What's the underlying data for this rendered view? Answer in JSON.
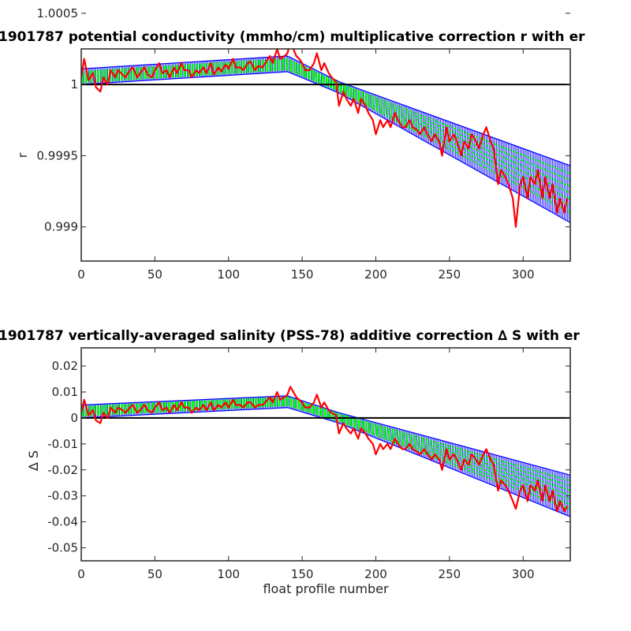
{
  "chart_data": [
    {
      "type": "line",
      "title": "1901787 potential conductivity (mmho/cm) multiplicative correction r with er",
      "xlabel": "",
      "ylabel": "r",
      "xlim": [
        0,
        332
      ],
      "ylim": [
        0.99876,
        1.00025
      ],
      "xticks": [
        0,
        50,
        100,
        150,
        200,
        250,
        300
      ],
      "xtick_labels": [
        "0",
        "50",
        "100",
        "150",
        "200",
        "250",
        "300"
      ],
      "yticks": [
        0.999,
        0.9995,
        1,
        1.0005
      ],
      "ytick_labels": [
        "0.999",
        "0.9995",
        "1",
        "1.0005"
      ],
      "reference_line": 1,
      "colors": {
        "reference": "#000000",
        "error_band": "#0000ff",
        "fit": "#00ff00",
        "measured": "#ff0000"
      },
      "series": [
        {
          "role": "error_upper",
          "x": [
            0,
            140,
            175,
            332
          ],
          "y": [
            1.00011,
            1.0002,
            1.00002,
            0.99943
          ]
        },
        {
          "role": "error_lower",
          "x": [
            0,
            140,
            175,
            332
          ],
          "y": [
            1.0,
            1.00009,
            0.99994,
            0.99903
          ]
        },
        {
          "role": "fit",
          "x": [
            0,
            140,
            175,
            332
          ],
          "y": [
            1.00005,
            1.00014,
            0.99998,
            0.99923
          ]
        },
        {
          "role": "measured",
          "x": [
            0,
            2,
            5,
            8,
            10,
            13,
            15,
            18,
            20,
            23,
            25,
            28,
            30,
            33,
            35,
            38,
            40,
            43,
            45,
            48,
            50,
            53,
            55,
            58,
            60,
            63,
            65,
            68,
            70,
            73,
            75,
            78,
            80,
            83,
            85,
            88,
            90,
            93,
            95,
            98,
            100,
            103,
            105,
            108,
            110,
            113,
            115,
            118,
            120,
            123,
            125,
            128,
            130,
            133,
            135,
            138,
            140,
            142,
            144,
            146,
            148,
            150,
            152,
            155,
            158,
            160,
            163,
            165,
            168,
            170,
            173,
            175,
            178,
            180,
            183,
            185,
            188,
            190,
            193,
            195,
            198,
            200,
            203,
            205,
            208,
            210,
            213,
            215,
            218,
            220,
            223,
            225,
            228,
            230,
            233,
            235,
            238,
            240,
            243,
            245,
            248,
            250,
            253,
            255,
            258,
            260,
            263,
            265,
            268,
            270,
            273,
            275,
            278,
            280,
            283,
            285,
            288,
            290,
            293,
            295,
            298,
            300,
            303,
            305,
            308,
            310,
            313,
            315,
            318,
            320,
            323,
            325,
            328,
            330
          ],
          "y": [
            1.00005,
            1.00018,
            1.00003,
            1.00008,
            0.99998,
            0.99995,
            1.00005,
            1.0,
            1.0001,
            1.00005,
            1.0001,
            1.00007,
            1.00005,
            1.0001,
            1.00012,
            1.00005,
            1.00008,
            1.00012,
            1.00007,
            1.00005,
            1.0001,
            1.00015,
            1.00008,
            1.0001,
            1.00005,
            1.00012,
            1.00008,
            1.00015,
            1.0001,
            1.0001,
            1.00005,
            1.0001,
            1.00008,
            1.00012,
            1.00008,
            1.00015,
            1.00007,
            1.00012,
            1.00009,
            1.00014,
            1.00011,
            1.00018,
            1.00012,
            1.00012,
            1.0001,
            1.00015,
            1.00016,
            1.0001,
            1.00013,
            1.00012,
            1.00015,
            1.0002,
            1.00015,
            1.00025,
            1.00018,
            1.0002,
            1.00022,
            1.0003,
            1.00025,
            1.0002,
            1.00018,
            1.00015,
            1.0001,
            1.0001,
            1.00015,
            1.00022,
            1.0001,
            1.00015,
            1.00008,
            1.00005,
            1.00002,
            0.99985,
            0.99995,
            0.9999,
            0.99985,
            0.9999,
            0.9998,
            0.9999,
            0.99985,
            0.9998,
            0.99975,
            0.99965,
            0.99975,
            0.9997,
            0.99975,
            0.9997,
            0.9998,
            0.99975,
            0.9997,
            0.9997,
            0.99975,
            0.9997,
            0.99968,
            0.99965,
            0.9997,
            0.99965,
            0.9996,
            0.99965,
            0.9996,
            0.9995,
            0.9997,
            0.9996,
            0.99965,
            0.9996,
            0.9995,
            0.9996,
            0.99955,
            0.99965,
            0.9996,
            0.99955,
            0.99965,
            0.9997,
            0.9996,
            0.99955,
            0.9993,
            0.9994,
            0.99935,
            0.9993,
            0.9992,
            0.999,
            0.9993,
            0.99935,
            0.9992,
            0.99935,
            0.9993,
            0.9994,
            0.9992,
            0.99935,
            0.9992,
            0.9993,
            0.9991,
            0.9992,
            0.9991,
            0.9992
          ]
        }
      ]
    },
    {
      "type": "line",
      "title": "1901787 vertically-averaged salinity (PSS-78) additive correction ∆ S with er",
      "xlabel": "float profile number",
      "ylabel": "∆ S",
      "xlim": [
        0,
        332
      ],
      "ylim": [
        -0.055,
        0.027
      ],
      "xticks": [
        0,
        50,
        100,
        150,
        200,
        250,
        300
      ],
      "xtick_labels": [
        "0",
        "50",
        "100",
        "150",
        "200",
        "250",
        "300"
      ],
      "yticks": [
        0.02,
        0.01,
        0,
        -0.01,
        -0.02,
        -0.03,
        -0.04,
        -0.05
      ],
      "ytick_labels": [
        "0.02",
        "0.01",
        "0",
        "-0.01",
        "-0.02",
        "-0.03",
        "-0.04",
        "-0.05"
      ],
      "reference_line": 0,
      "colors": {
        "reference": "#000000",
        "error_band": "#0000ff",
        "fit": "#00ff00",
        "measured": "#ff0000"
      },
      "series": [
        {
          "role": "error_upper",
          "x": [
            0,
            140,
            175,
            332
          ],
          "y": [
            0.005,
            0.0085,
            0.002,
            -0.022
          ]
        },
        {
          "role": "error_lower",
          "x": [
            0,
            140,
            175,
            332
          ],
          "y": [
            0.0,
            0.004,
            -0.002,
            -0.038
          ]
        },
        {
          "role": "fit",
          "x": [
            0,
            140,
            175,
            332
          ],
          "y": [
            0.0025,
            0.0063,
            0.0,
            -0.03
          ]
        },
        {
          "role": "measured",
          "x": [
            0,
            2,
            5,
            8,
            10,
            13,
            15,
            18,
            20,
            23,
            25,
            28,
            30,
            33,
            35,
            38,
            40,
            43,
            45,
            48,
            50,
            53,
            55,
            58,
            60,
            63,
            65,
            68,
            70,
            73,
            75,
            78,
            80,
            83,
            85,
            88,
            90,
            93,
            95,
            98,
            100,
            103,
            105,
            108,
            110,
            113,
            115,
            118,
            120,
            123,
            125,
            128,
            130,
            133,
            135,
            138,
            140,
            142,
            144,
            146,
            148,
            150,
            152,
            155,
            158,
            160,
            163,
            165,
            168,
            170,
            173,
            175,
            178,
            180,
            183,
            185,
            188,
            190,
            193,
            195,
            198,
            200,
            203,
            205,
            208,
            210,
            213,
            215,
            218,
            220,
            223,
            225,
            228,
            230,
            233,
            235,
            238,
            240,
            243,
            245,
            248,
            250,
            253,
            255,
            258,
            260,
            263,
            265,
            268,
            270,
            273,
            275,
            278,
            280,
            283,
            285,
            288,
            290,
            293,
            295,
            298,
            300,
            303,
            305,
            308,
            310,
            313,
            315,
            318,
            320,
            323,
            325,
            328,
            330
          ],
          "y": [
            0.002,
            0.007,
            0.001,
            0.003,
            -0.001,
            -0.002,
            0.002,
            0.0,
            0.004,
            0.002,
            0.004,
            0.003,
            0.002,
            0.004,
            0.005,
            0.002,
            0.003,
            0.005,
            0.003,
            0.002,
            0.004,
            0.006,
            0.003,
            0.004,
            0.002,
            0.005,
            0.003,
            0.006,
            0.004,
            0.004,
            0.002,
            0.004,
            0.003,
            0.005,
            0.003,
            0.006,
            0.003,
            0.005,
            0.004,
            0.006,
            0.004,
            0.007,
            0.005,
            0.005,
            0.004,
            0.006,
            0.006,
            0.004,
            0.005,
            0.005,
            0.006,
            0.008,
            0.006,
            0.01,
            0.007,
            0.008,
            0.009,
            0.012,
            0.01,
            0.008,
            0.007,
            0.006,
            0.004,
            0.004,
            0.006,
            0.009,
            0.004,
            0.006,
            0.003,
            0.002,
            0.001,
            -0.006,
            -0.002,
            -0.004,
            -0.006,
            -0.004,
            -0.008,
            -0.004,
            -0.006,
            -0.008,
            -0.01,
            -0.014,
            -0.01,
            -0.012,
            -0.01,
            -0.012,
            -0.008,
            -0.01,
            -0.012,
            -0.012,
            -0.01,
            -0.012,
            -0.013,
            -0.014,
            -0.012,
            -0.014,
            -0.016,
            -0.014,
            -0.016,
            -0.02,
            -0.012,
            -0.016,
            -0.014,
            -0.016,
            -0.02,
            -0.016,
            -0.018,
            -0.014,
            -0.016,
            -0.018,
            -0.014,
            -0.012,
            -0.016,
            -0.018,
            -0.028,
            -0.024,
            -0.026,
            -0.028,
            -0.032,
            -0.035,
            -0.028,
            -0.026,
            -0.032,
            -0.026,
            -0.028,
            -0.024,
            -0.032,
            -0.026,
            -0.032,
            -0.028,
            -0.036,
            -0.032,
            -0.036,
            -0.034
          ]
        }
      ]
    }
  ]
}
